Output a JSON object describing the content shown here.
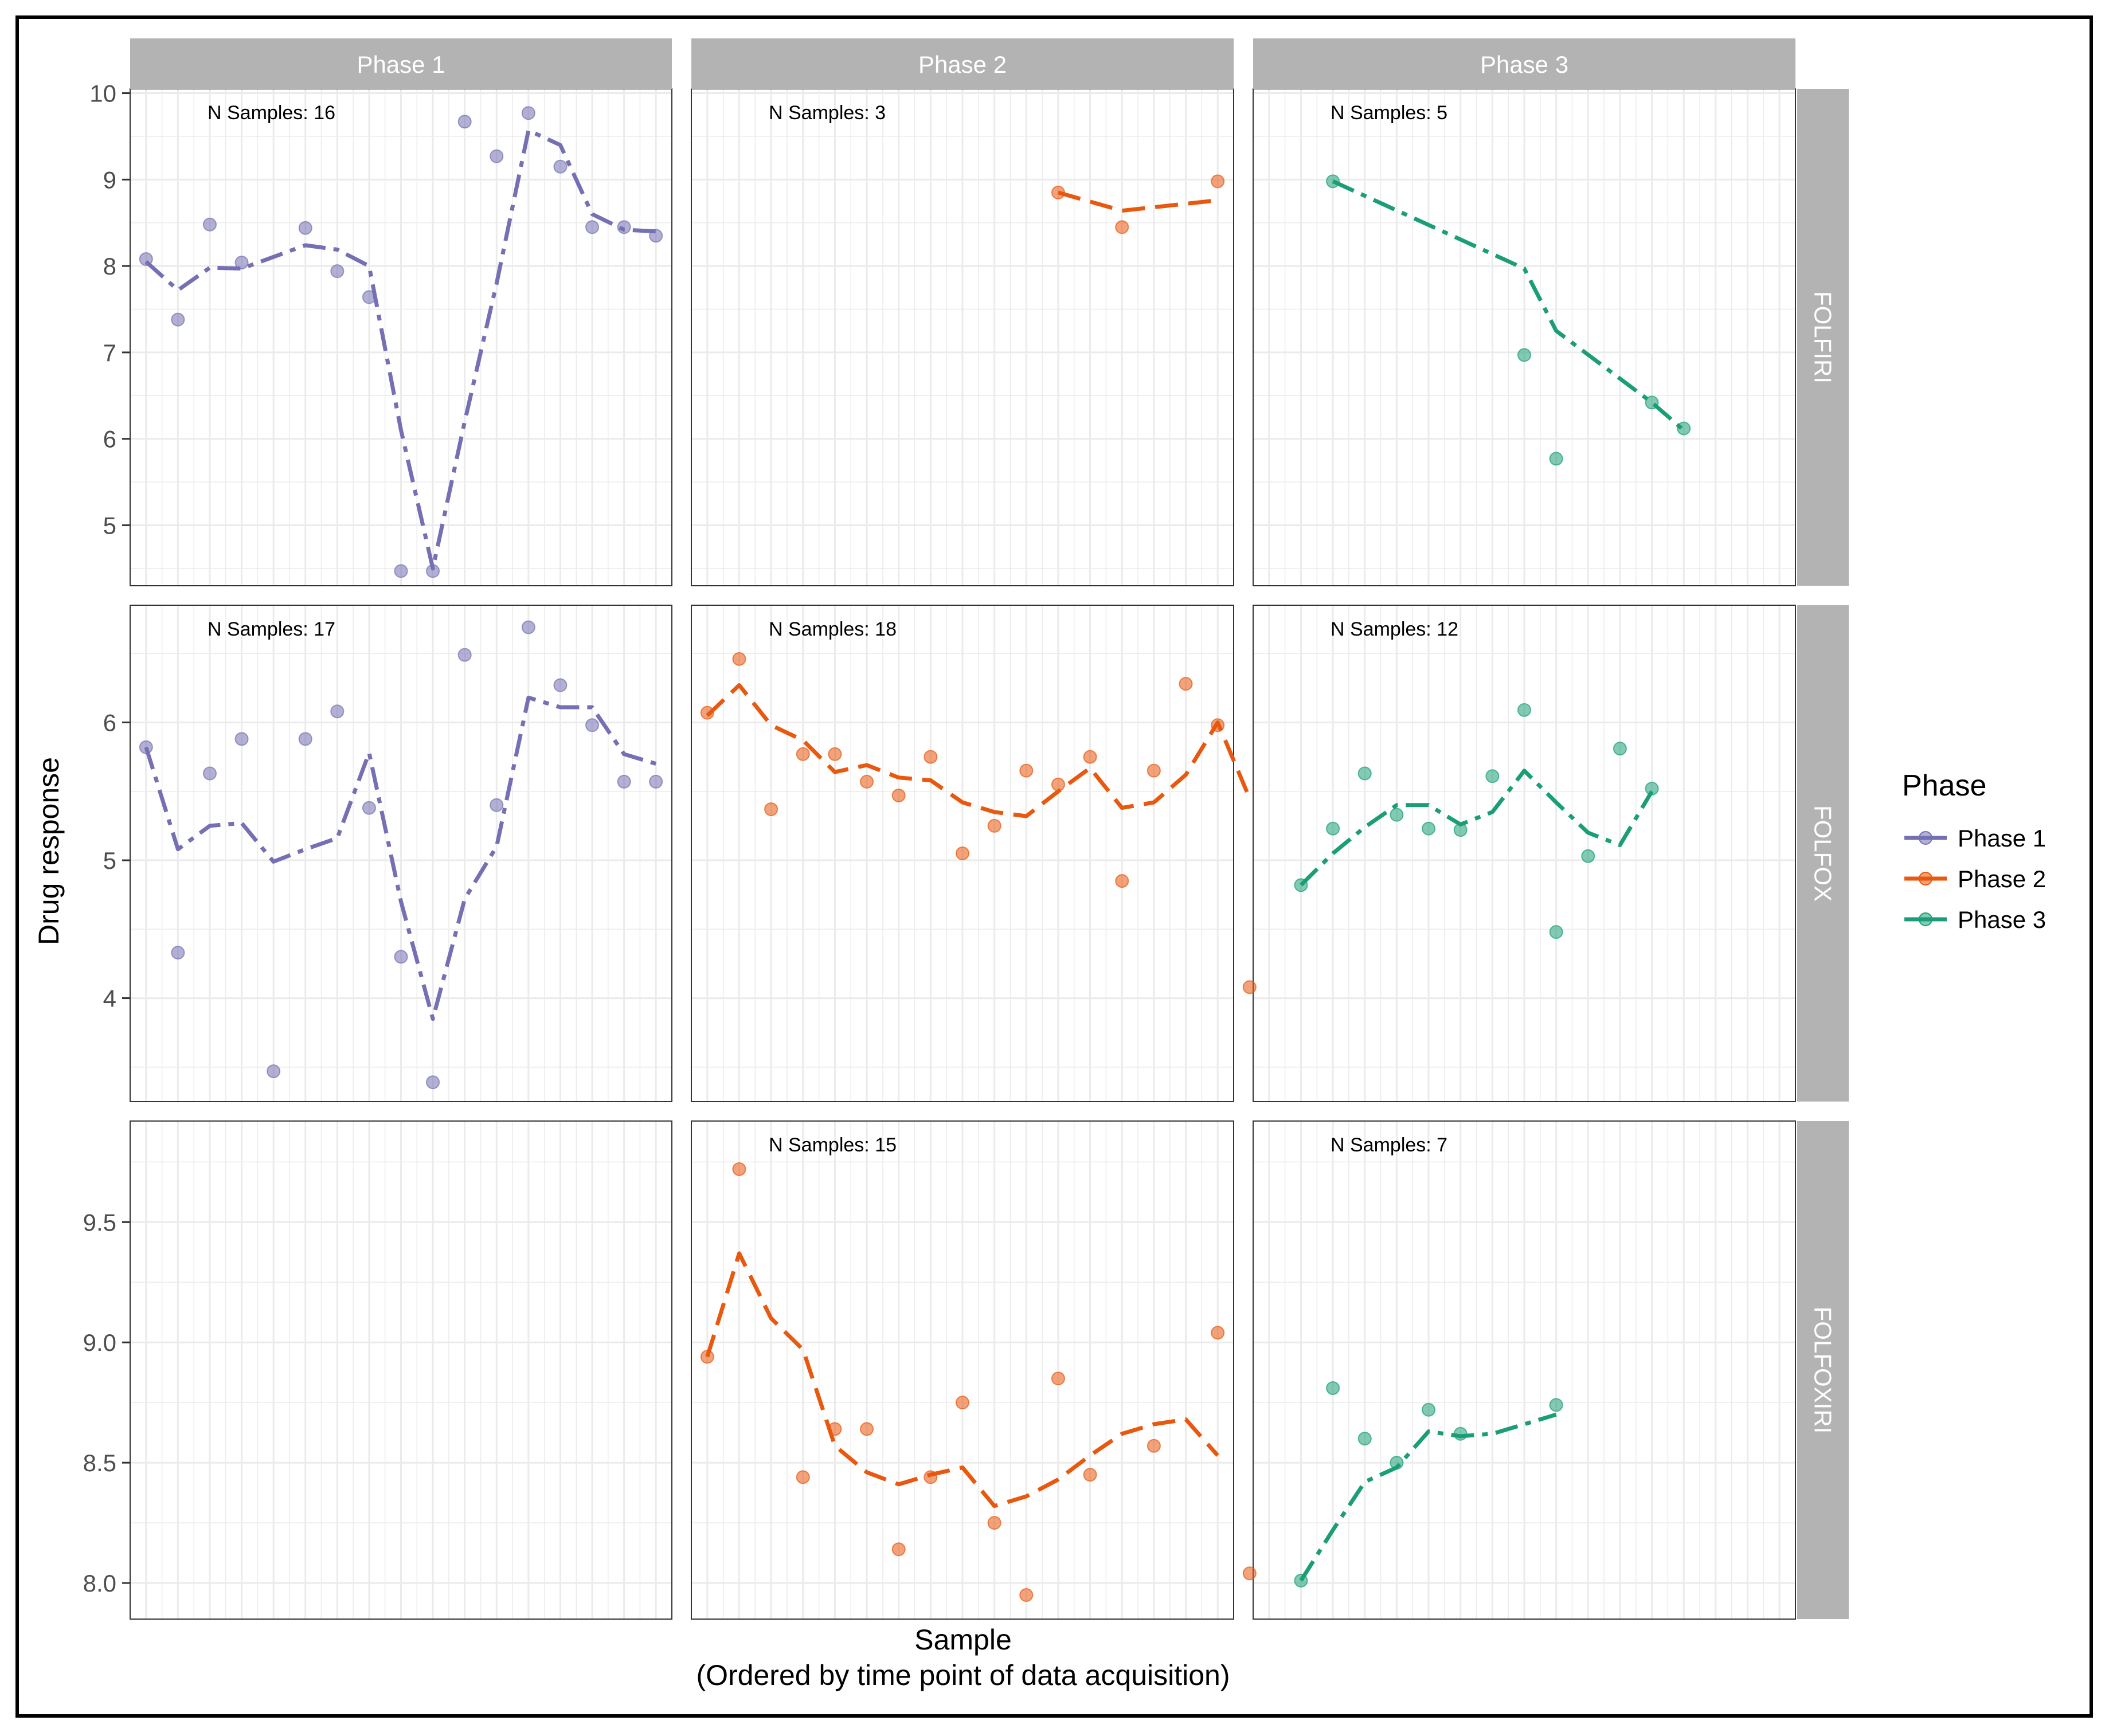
{
  "chart_data": {
    "type": "scatter",
    "title": "",
    "xlabel": "Sample",
    "xlabel_sub": "(Ordered by time point of data acquisition)",
    "ylabel": "Drug response",
    "x_range": [
      0.5,
      17.5
    ],
    "grid": true,
    "legend": {
      "title": "Phase",
      "placement": "right",
      "entries": [
        {
          "label": "Phase 1",
          "color": "#7570b3"
        },
        {
          "label": "Phase 2",
          "color": "#e8580e"
        },
        {
          "label": "Phase 3",
          "color": "#1b9e77"
        }
      ]
    },
    "columns": [
      "Phase 1",
      "Phase 2",
      "Phase 3"
    ],
    "rows": [
      {
        "label": "FOLFIRI",
        "ylim": [
          4.3,
          10.05
        ],
        "yticks": [
          "5",
          "6",
          "7",
          "8",
          "9",
          "10"
        ],
        "ytick_values": [
          5,
          6,
          7,
          8,
          9,
          10
        ]
      },
      {
        "label": "FOLFOX",
        "ylim": [
          3.25,
          6.85
        ],
        "yticks": [
          "4",
          "5",
          "6"
        ],
        "ytick_values": [
          4,
          5,
          6
        ]
      },
      {
        "label": "FOLFOXIRI",
        "ylim": [
          7.85,
          9.92
        ],
        "yticks": [
          "8.0",
          "8.5",
          "9.0",
          "9.5"
        ],
        "ytick_values": [
          8.0,
          8.5,
          9.0,
          9.5
        ]
      }
    ],
    "panels": [
      {
        "row": 0,
        "col": 0,
        "annotation": "N Samples: 16",
        "points": [
          [
            1,
            8.08
          ],
          [
            2,
            7.38
          ],
          [
            3,
            8.48
          ],
          [
            4,
            8.04
          ],
          [
            6,
            8.44
          ],
          [
            7,
            7.94
          ],
          [
            8,
            7.64
          ],
          [
            9,
            4.47
          ],
          [
            10,
            4.47
          ],
          [
            11,
            9.67
          ],
          [
            12,
            9.27
          ],
          [
            13,
            9.77
          ],
          [
            14,
            9.15
          ],
          [
            15,
            8.45
          ],
          [
            16,
            8.45
          ],
          [
            17,
            8.35
          ]
        ],
        "line": [
          [
            1,
            8.05
          ],
          [
            2,
            7.72
          ],
          [
            3,
            7.98
          ],
          [
            4,
            7.97
          ],
          [
            6,
            8.24
          ],
          [
            7,
            8.19
          ],
          [
            8,
            8.0
          ],
          [
            9,
            6.1
          ],
          [
            10,
            4.5
          ],
          [
            11,
            6.2
          ],
          [
            12,
            7.8
          ],
          [
            13,
            9.57
          ],
          [
            14,
            9.4
          ],
          [
            15,
            8.6
          ],
          [
            16,
            8.42
          ],
          [
            17,
            8.4
          ]
        ]
      },
      {
        "row": 0,
        "col": 1,
        "annotation": "N Samples: 3",
        "points": [
          [
            12,
            8.85
          ],
          [
            14,
            8.45
          ],
          [
            17,
            8.98
          ]
        ],
        "line": [
          [
            12,
            8.85
          ],
          [
            14,
            8.64
          ],
          [
            17,
            8.76
          ]
        ]
      },
      {
        "row": 0,
        "col": 2,
        "annotation": "N Samples: 5",
        "points": [
          [
            3,
            8.98
          ],
          [
            9,
            6.97
          ],
          [
            10,
            5.77
          ],
          [
            13,
            6.42
          ],
          [
            14,
            6.12
          ]
        ],
        "line": [
          [
            3,
            8.98
          ],
          [
            9,
            7.97
          ],
          [
            10,
            7.25
          ],
          [
            13,
            6.42
          ],
          [
            14,
            6.1
          ]
        ]
      },
      {
        "row": 1,
        "col": 0,
        "annotation": "N Samples: 17",
        "points": [
          [
            1,
            5.82
          ],
          [
            2,
            4.33
          ],
          [
            3,
            5.63
          ],
          [
            4,
            5.88
          ],
          [
            5,
            3.47
          ],
          [
            6,
            5.88
          ],
          [
            7,
            6.08
          ],
          [
            8,
            5.38
          ],
          [
            9,
            4.3
          ],
          [
            10,
            3.39
          ],
          [
            11,
            6.49
          ],
          [
            12,
            5.4
          ],
          [
            13,
            6.69
          ],
          [
            14,
            6.27
          ],
          [
            15,
            5.98
          ],
          [
            16,
            5.57
          ],
          [
            17,
            5.57
          ]
        ],
        "line": [
          [
            1,
            5.82
          ],
          [
            2,
            5.08
          ],
          [
            3,
            5.25
          ],
          [
            4,
            5.27
          ],
          [
            5,
            4.99
          ],
          [
            6,
            5.08
          ],
          [
            7,
            5.16
          ],
          [
            8,
            5.78
          ],
          [
            9,
            4.7
          ],
          [
            10,
            3.85
          ],
          [
            11,
            4.72
          ],
          [
            12,
            5.1
          ],
          [
            13,
            6.18
          ],
          [
            14,
            6.11
          ],
          [
            15,
            6.11
          ],
          [
            16,
            5.77
          ],
          [
            17,
            5.7
          ]
        ]
      },
      {
        "row": 1,
        "col": 1,
        "annotation": "N Samples: 18",
        "points": [
          [
            1,
            6.07
          ],
          [
            2,
            6.46
          ],
          [
            3,
            5.37
          ],
          [
            4,
            5.77
          ],
          [
            5,
            5.77
          ],
          [
            6,
            5.57
          ],
          [
            7,
            5.47
          ],
          [
            8,
            5.75
          ],
          [
            9,
            5.05
          ],
          [
            10,
            5.25
          ],
          [
            11,
            5.65
          ],
          [
            12,
            5.55
          ],
          [
            13,
            5.75
          ],
          [
            14,
            4.85
          ],
          [
            15,
            5.65
          ],
          [
            16,
            6.28
          ],
          [
            17,
            5.98
          ],
          [
            18,
            4.08
          ]
        ],
        "line": [
          [
            1,
            6.05
          ],
          [
            2,
            6.27
          ],
          [
            3,
            5.98
          ],
          [
            4,
            5.87
          ],
          [
            5,
            5.64
          ],
          [
            6,
            5.69
          ],
          [
            7,
            5.6
          ],
          [
            8,
            5.58
          ],
          [
            9,
            5.42
          ],
          [
            10,
            5.35
          ],
          [
            11,
            5.32
          ],
          [
            12,
            5.5
          ],
          [
            13,
            5.67
          ],
          [
            14,
            5.38
          ],
          [
            15,
            5.42
          ],
          [
            16,
            5.62
          ],
          [
            17,
            6.0
          ],
          [
            18,
            5.45
          ]
        ]
      },
      {
        "row": 1,
        "col": 2,
        "annotation": "N Samples: 12",
        "points": [
          [
            2,
            4.82
          ],
          [
            3,
            5.23
          ],
          [
            4,
            5.63
          ],
          [
            5,
            5.33
          ],
          [
            6,
            5.23
          ],
          [
            7,
            5.22
          ],
          [
            8,
            5.61
          ],
          [
            9,
            6.09
          ],
          [
            10,
            4.48
          ],
          [
            11,
            5.03
          ],
          [
            12,
            5.81
          ],
          [
            13,
            5.52
          ]
        ],
        "line": [
          [
            2,
            4.82
          ],
          [
            3,
            5.05
          ],
          [
            4,
            5.24
          ],
          [
            5,
            5.4
          ],
          [
            6,
            5.4
          ],
          [
            7,
            5.26
          ],
          [
            8,
            5.35
          ],
          [
            9,
            5.65
          ],
          [
            10,
            5.42
          ],
          [
            11,
            5.2
          ],
          [
            12,
            5.11
          ],
          [
            13,
            5.5
          ]
        ]
      },
      {
        "row": 2,
        "col": 0,
        "annotation": "",
        "points": [],
        "line": []
      },
      {
        "row": 2,
        "col": 1,
        "annotation": "N Samples: 15",
        "points": [
          [
            1,
            8.94
          ],
          [
            4,
            8.44
          ],
          [
            5,
            8.64
          ],
          [
            6,
            8.64
          ],
          [
            7,
            8.14
          ],
          [
            8,
            8.44
          ],
          [
            9,
            8.75
          ],
          [
            10,
            8.25
          ],
          [
            11,
            7.95
          ],
          [
            12,
            8.85
          ],
          [
            13,
            8.45
          ],
          [
            15,
            8.57
          ],
          [
            17,
            9.04
          ],
          [
            18,
            8.04
          ]
        ],
        "line": [
          [
            1,
            8.94
          ],
          [
            2,
            9.37
          ],
          [
            3,
            9.1
          ],
          [
            4,
            8.97
          ],
          [
            5,
            8.57
          ],
          [
            6,
            8.46
          ],
          [
            7,
            8.41
          ],
          [
            8,
            8.45
          ],
          [
            9,
            8.48
          ],
          [
            10,
            8.32
          ],
          [
            11,
            8.36
          ],
          [
            12,
            8.43
          ],
          [
            13,
            8.53
          ],
          [
            14,
            8.62
          ],
          [
            15,
            8.66
          ],
          [
            16,
            8.68
          ],
          [
            17,
            8.53
          ]
        ]
      },
      {
        "row": 2,
        "col": 2,
        "annotation": "N Samples: 7",
        "points": [
          [
            2,
            8.01
          ],
          [
            3,
            8.81
          ],
          [
            4,
            8.6
          ],
          [
            5,
            8.5
          ],
          [
            6,
            8.72
          ],
          [
            7,
            8.62
          ],
          [
            10,
            8.74
          ]
        ],
        "line": [
          [
            2,
            8.01
          ],
          [
            3,
            8.22
          ],
          [
            4,
            8.42
          ],
          [
            5,
            8.48
          ],
          [
            6,
            8.63
          ],
          [
            7,
            8.61
          ],
          [
            8,
            8.62
          ],
          [
            9,
            8.66
          ],
          [
            10,
            8.7
          ]
        ]
      }
    ],
    "stray_points": [
      {
        "panel_row": 2,
        "panel_col": 1,
        "x": 2,
        "y": 9.72
      }
    ]
  }
}
